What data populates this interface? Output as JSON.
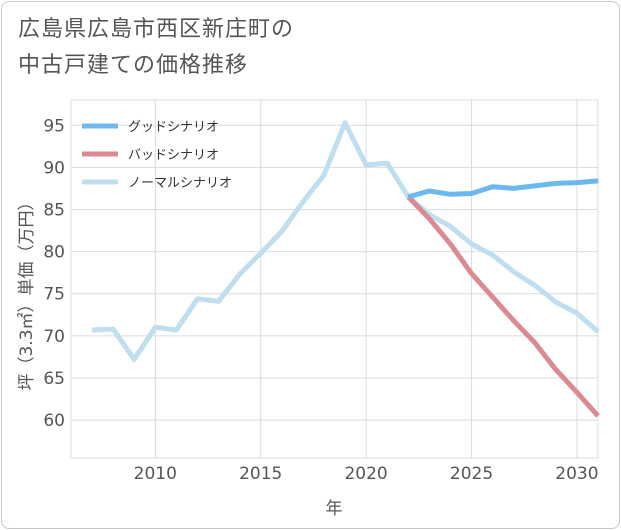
{
  "title": {
    "line1": "広島県広島市西区新庄町の",
    "line2": "中古戸建ての価格推移"
  },
  "chart_data": {
    "type": "line",
    "xlabel": "年",
    "ylabel": "坪（3.3㎡）単価（万円）",
    "xlim": [
      2006,
      2031
    ],
    "ylim": [
      55.5,
      98
    ],
    "xticks": [
      2010,
      2015,
      2020,
      2025,
      2030
    ],
    "yticks": [
      60,
      65,
      70,
      75,
      80,
      85,
      90,
      95
    ],
    "grid": true,
    "legend_position": "top-left",
    "series": [
      {
        "name": "グッドシナリオ",
        "color": "#6cb8ef",
        "x": [
          2022,
          2023,
          2024,
          2025,
          2026,
          2027,
          2028,
          2029,
          2030,
          2031
        ],
        "values": [
          86.5,
          87.2,
          86.8,
          86.9,
          87.7,
          87.5,
          87.8,
          88.1,
          88.2,
          88.4
        ]
      },
      {
        "name": "バッドシナリオ",
        "color": "#dc8a91",
        "x": [
          2022,
          2023,
          2024,
          2025,
          2026,
          2027,
          2028,
          2029,
          2030,
          2031
        ],
        "values": [
          86.5,
          83.9,
          80.9,
          77.4,
          74.6,
          71.8,
          69.2,
          66.0,
          63.3,
          60.5
        ]
      },
      {
        "name": "ノーマルシナリオ",
        "color": "#bfdef0",
        "x": [
          2007,
          2008,
          2009,
          2010,
          2011,
          2012,
          2013,
          2014,
          2015,
          2016,
          2017,
          2018,
          2019,
          2020,
          2021,
          2022,
          2023,
          2024,
          2025,
          2026,
          2027,
          2028,
          2029,
          2030,
          2031
        ],
        "values": [
          70.7,
          70.8,
          67.2,
          71.0,
          70.7,
          74.4,
          74.1,
          77.3,
          79.8,
          82.4,
          85.9,
          89.1,
          95.3,
          90.3,
          90.5,
          86.5,
          84.4,
          83.0,
          80.9,
          79.6,
          77.6,
          76.0,
          74.0,
          72.7,
          70.5
        ]
      }
    ]
  }
}
